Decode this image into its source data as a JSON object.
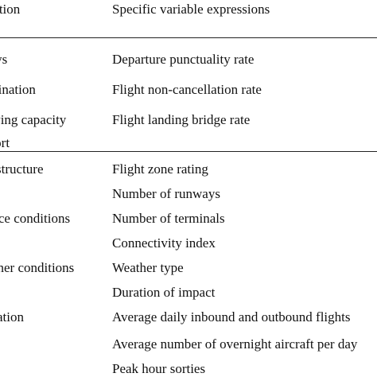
{
  "table": {
    "header": {
      "col1": "Selection",
      "col2": "Specific variable expressions"
    },
    "rows": [
      {
        "col1": "Delays",
        "col2": "Departure punctuality rate"
      },
      {
        "col1": "Termination",
        "col2": "Flight non-cancellation rate"
      },
      {
        "col1": "Carrying capacity",
        "col2": "Flight landing bridge rate"
      },
      {
        "col1": "Airport",
        "col2": ""
      },
      {
        "col1": "Infrastructure",
        "col2": "Flight zone rating"
      },
      {
        "col1": "",
        "col2": "Number of runways"
      },
      {
        "col1": "Service conditions",
        "col2": "Number of terminals"
      },
      {
        "col1": "",
        "col2": "Connectivity index"
      },
      {
        "col1": "Weather conditions",
        "col2": "Weather type"
      },
      {
        "col1": "",
        "col2": "Duration of impact"
      },
      {
        "col1": "Operation",
        "col2": "Average daily inbound and outbound flights"
      },
      {
        "col1": "",
        "col2": "Average number of overnight aircraft per day"
      },
      {
        "col1": "",
        "col2": "Peak hour sorties"
      }
    ]
  }
}
